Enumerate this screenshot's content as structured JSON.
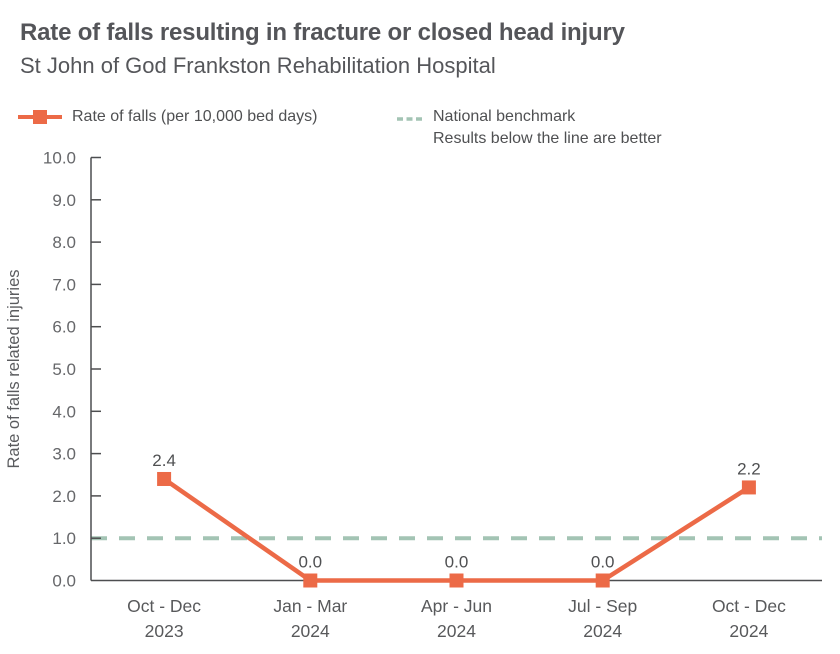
{
  "header": {
    "title": "Rate of falls resulting in fracture or closed head injury",
    "subtitle": "St John of God Frankston Rehabilitation Hospital"
  },
  "legend": {
    "series_label": "Rate of falls (per 10,000 bed days)",
    "benchmark_label": "National benchmark",
    "benchmark_note": "Results below the line are better"
  },
  "colors": {
    "series": "#EC6A47",
    "benchmark": "#A3C4B4",
    "axis": "#4D4E50",
    "tick_text": "#66676A",
    "label_text": "#4F5052"
  },
  "chart_data": {
    "type": "line",
    "title": "Rate of falls resulting in fracture or closed head injury",
    "subtitle": "St John of God Frankston Rehabilitation Hospital",
    "categories": [
      [
        "Oct - Dec",
        "2023"
      ],
      [
        "Jan - Mar",
        "2024"
      ],
      [
        "Apr - Jun",
        "2024"
      ],
      [
        "Jul - Sep",
        "2024"
      ],
      [
        "Oct - Dec",
        "2024"
      ]
    ],
    "values": [
      2.4,
      0.0,
      0.0,
      0.0,
      2.2
    ],
    "data_labels": [
      "2.4",
      "0.0",
      "0.0",
      "0.0",
      "2.2"
    ],
    "benchmark_value": 1.0,
    "ylabel": "Rate of falls related injuries",
    "xlabel": "",
    "ylim": [
      0,
      10
    ],
    "ytick_step": 1.0,
    "ytick_labels": [
      "0.0",
      "1.0",
      "2.0",
      "3.0",
      "4.0",
      "5.0",
      "6.0",
      "7.0",
      "8.0",
      "9.0",
      "10.0"
    ],
    "grid": false,
    "legend_position": "top",
    "marker": "square",
    "benchmark_style": "dashed"
  }
}
